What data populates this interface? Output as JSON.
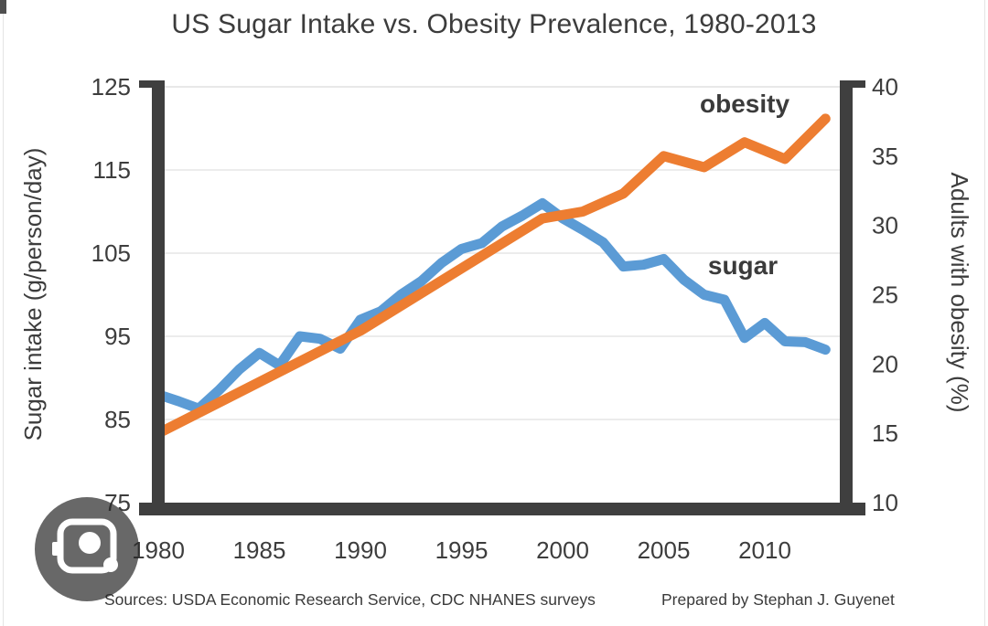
{
  "chart_data": {
    "type": "line",
    "title": "US Sugar Intake vs. Obesity Prevalence, 1980-2013",
    "grid": "horizontal",
    "frame_color": "#3f3f3f",
    "x_axis": {
      "ticks": [
        1980,
        1985,
        1990,
        1995,
        2000,
        2005,
        2010
      ],
      "range": [
        1980,
        2013.7
      ]
    },
    "left_axis": {
      "label": "Sugar intake (g/person/day)",
      "ticks": [
        125,
        115,
        105,
        95,
        85,
        75
      ],
      "range": [
        75,
        125
      ]
    },
    "right_axis": {
      "label": "Adults with obesity (%)",
      "ticks": [
        40,
        35,
        30,
        25,
        20,
        15,
        10
      ],
      "range": [
        10,
        40
      ]
    },
    "series": [
      {
        "name": "sugar",
        "label": "sugar",
        "axis": "left",
        "color": "#5b9bd5",
        "years": [
          1980,
          1981,
          1982,
          1983,
          1984,
          1985,
          1986,
          1987,
          1988,
          1989,
          1990,
          1991,
          1992,
          1993,
          1994,
          1995,
          1996,
          1997,
          1998,
          1999,
          2000,
          2001,
          2002,
          2003,
          2004,
          2005,
          2006,
          2007,
          2008,
          2009,
          2010,
          2011,
          2012,
          2013
        ],
        "values": [
          88.0,
          87.2,
          86.3,
          88.5,
          91.0,
          93.0,
          91.5,
          95.0,
          94.7,
          93.5,
          97.0,
          98.0,
          100.0,
          101.6,
          103.8,
          105.5,
          106.2,
          108.2,
          109.5,
          111.0,
          109.2,
          107.8,
          106.3,
          103.4,
          103.6,
          104.3,
          101.8,
          100.0,
          99.4,
          94.8,
          96.6,
          94.4,
          94.3,
          93.4
        ]
      },
      {
        "name": "obesity",
        "label": "obesity",
        "axis": "right",
        "color": "#ed7d31",
        "years": [
          1980,
          1990,
          1999,
          2001,
          2003,
          2005,
          2007,
          2009,
          2011,
          2013
        ],
        "values": [
          15.0,
          22.4,
          30.5,
          31.0,
          32.3,
          35.0,
          34.2,
          36.0,
          34.8,
          37.7
        ]
      }
    ]
  },
  "footer": {
    "sources": "Sources: USDA Economic Research Service, CDC NHANES surveys",
    "credit": "Prepared by Stephan J. Guyenet"
  },
  "overlay": {
    "lens_icon": "camera-icon"
  }
}
